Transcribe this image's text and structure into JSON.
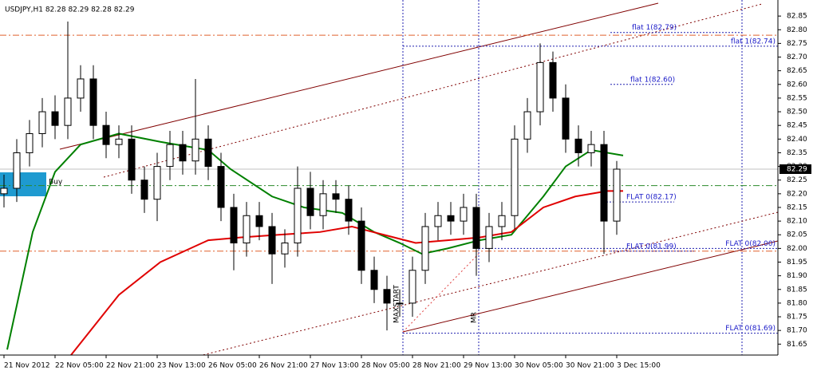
{
  "chart_data": {
    "type": "candlestick",
    "title": "USDJPY,H1  82.28 82.29 82.28 82.29",
    "x": [
      0,
      4,
      8,
      12,
      16,
      20,
      24,
      28,
      32,
      36,
      40,
      44,
      48,
      52,
      56,
      60,
      64,
      68,
      72,
      76,
      80,
      84,
      88,
      92,
      96,
      100,
      104,
      108,
      112,
      116,
      120,
      124,
      128,
      132,
      136,
      140,
      144,
      148,
      152,
      156,
      160,
      164,
      168,
      172,
      176,
      180,
      184,
      188,
      192
    ],
    "open": [
      82.2,
      82.22,
      82.35,
      82.42,
      82.5,
      82.45,
      82.55,
      82.62,
      82.45,
      82.38,
      82.4,
      82.25,
      82.18,
      82.3,
      82.38,
      82.32,
      82.4,
      82.3,
      82.15,
      82.02,
      82.12,
      82.08,
      81.98,
      82.02,
      82.22,
      82.12,
      82.2,
      82.18,
      82.1,
      81.92,
      81.85,
      81.8,
      81.8,
      81.92,
      82.08,
      82.12,
      82.1,
      82.15,
      82.0,
      82.08,
      82.12,
      82.4,
      82.5,
      82.68,
      82.55,
      82.4,
      82.35,
      82.38,
      82.1
    ],
    "high": [
      82.27,
      82.4,
      82.47,
      82.55,
      82.56,
      82.83,
      82.67,
      82.67,
      82.5,
      82.45,
      82.45,
      82.3,
      82.35,
      82.43,
      82.43,
      82.62,
      82.45,
      82.35,
      82.2,
      82.17,
      82.17,
      82.13,
      82.07,
      82.3,
      82.28,
      82.25,
      82.25,
      82.23,
      82.15,
      81.97,
      81.9,
      81.85,
      81.97,
      82.13,
      82.17,
      82.17,
      82.2,
      82.2,
      82.13,
      82.17,
      82.45,
      82.55,
      82.75,
      82.72,
      82.6,
      82.45,
      82.43,
      82.43,
      82.32
    ],
    "low": [
      82.15,
      82.17,
      82.3,
      82.37,
      82.4,
      82.4,
      82.5,
      82.4,
      82.33,
      82.33,
      82.2,
      82.13,
      82.1,
      82.25,
      82.27,
      82.27,
      82.25,
      82.1,
      81.92,
      81.97,
      82.03,
      81.87,
      81.93,
      81.97,
      82.07,
      82.07,
      82.13,
      82.05,
      81.87,
      81.8,
      81.7,
      81.75,
      81.75,
      81.87,
      82.03,
      82.05,
      82.05,
      81.9,
      81.95,
      82.03,
      82.07,
      82.35,
      82.45,
      82.5,
      82.35,
      82.3,
      82.3,
      81.98,
      82.05
    ],
    "close": [
      82.22,
      82.35,
      82.42,
      82.5,
      82.45,
      82.55,
      82.62,
      82.45,
      82.38,
      82.4,
      82.25,
      82.18,
      82.3,
      82.38,
      82.32,
      82.4,
      82.3,
      82.15,
      82.02,
      82.12,
      82.08,
      81.98,
      82.02,
      82.22,
      82.12,
      82.2,
      82.18,
      82.1,
      81.92,
      81.85,
      81.8,
      81.8,
      81.92,
      82.08,
      82.12,
      82.1,
      82.15,
      82.0,
      82.08,
      82.12,
      82.4,
      82.5,
      82.68,
      82.55,
      82.4,
      82.35,
      82.38,
      82.1,
      82.29
    ],
    "up_color": "#ffffff",
    "down_color": "#000000",
    "series": [
      {
        "color": "#008000",
        "x": [
          1,
          9,
          16,
          24,
          36,
          49,
          64,
          71,
          84,
          94,
          106,
          116,
          124,
          131,
          139,
          149,
          159,
          169,
          176,
          184,
          194
        ],
        "values": [
          81.63,
          82.06,
          82.28,
          82.38,
          82.42,
          82.39,
          82.36,
          82.29,
          82.19,
          82.15,
          82.13,
          82.06,
          82.02,
          81.98,
          82.0,
          82.03,
          82.05,
          82.19,
          82.3,
          82.36,
          82.34
        ]
      },
      {
        "color": "#e00000",
        "x": [
          21,
          36,
          49,
          64,
          74,
          86,
          99,
          109,
          119,
          129,
          139,
          149,
          159,
          169,
          179,
          189,
          194
        ],
        "values": [
          81.61,
          81.83,
          81.95,
          82.03,
          82.04,
          82.05,
          82.06,
          82.08,
          82.05,
          82.02,
          82.03,
          82.04,
          82.06,
          82.15,
          82.19,
          82.21,
          82.21
        ]
      }
    ],
    "hlines": [
      {
        "value": 82.78,
        "color": "#e0602c"
      },
      {
        "value": 82.23,
        "color": "#2a8a2a"
      },
      {
        "value": 81.99,
        "color": "#e0602c"
      }
    ],
    "levels": [
      {
        "value": 82.79,
        "label": "flat 1(82.79)"
      },
      {
        "value": 82.74,
        "label": "flat 1(82.74)"
      },
      {
        "value": 82.6,
        "label": "flat 1(82.60)"
      },
      {
        "value": 82.17,
        "label": "FLAT 0(82.17)"
      },
      {
        "value": 81.99,
        "label": "FLAT 0(81.99)"
      },
      {
        "value": 82.0,
        "label": "FLAT 0(82.00)"
      },
      {
        "value": 81.69,
        "label": "FLAT 0(81.69)"
      }
    ],
    "current_price": {
      "value": 82.29,
      "label": "82.29"
    },
    "annotations": [
      "Buy",
      "MAXSTART",
      "MR"
    ],
    "xlim": [
      -1,
      242.5
    ],
    "ylim": [
      81.61,
      82.9
    ],
    "xticks": [
      {
        "value": 0,
        "label": "21 Nov 2012"
      },
      {
        "value": 16,
        "label": "22 Nov 05:00"
      },
      {
        "value": 32,
        "label": "22 Nov 21:00"
      },
      {
        "value": 48,
        "label": "23 Nov 13:00"
      },
      {
        "value": 64,
        "label": "26 Nov 05:00"
      },
      {
        "value": 80,
        "label": "26 Nov 21:00"
      },
      {
        "value": 96,
        "label": "27 Nov 13:00"
      },
      {
        "value": 112,
        "label": "28 Nov 05:00"
      },
      {
        "value": 128,
        "label": "28 Nov 21:00"
      },
      {
        "value": 144,
        "label": "29 Nov 13:00"
      },
      {
        "value": 160,
        "label": "30 Nov 05:00"
      },
      {
        "value": 176,
        "label": "30 Nov 21:00"
      },
      {
        "value": 192,
        "label": "3 Dec 15:00"
      }
    ],
    "yticks": [
      81.65,
      {
        "value": 81.7,
        "label": "81.70"
      },
      81.75,
      {
        "value": 81.8,
        "label": "81.80"
      },
      81.85,
      {
        "value": 81.9,
        "label": "81.90"
      },
      81.95,
      {
        "value": 82.0,
        "label": "82.00"
      },
      82.05,
      {
        "value": 82.1,
        "label": "82.10"
      },
      82.15,
      {
        "value": 82.2,
        "label": "82.20"
      },
      82.25,
      {
        "value": 82.3,
        "label": "82.30"
      },
      82.35,
      {
        "value": 82.4,
        "label": "82.40"
      },
      82.45,
      {
        "value": 82.5,
        "label": "82.50"
      },
      82.55,
      {
        "value": 82.6,
        "label": "82.60"
      },
      82.65,
      {
        "value": 82.7,
        "label": "82.70"
      },
      82.75,
      {
        "value": 82.8,
        "label": "82.80"
      },
      82.85
    ]
  }
}
